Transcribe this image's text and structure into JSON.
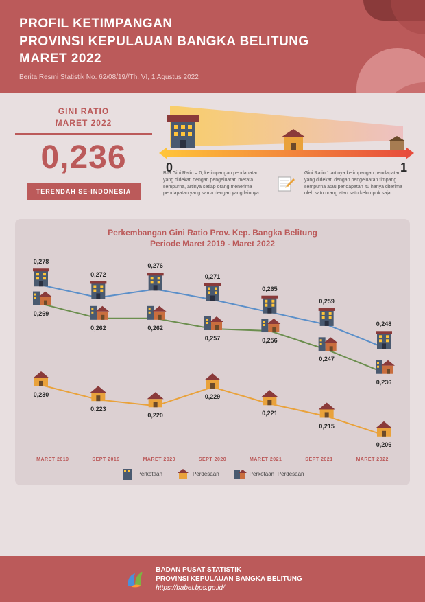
{
  "header": {
    "title_l1": "PROFIL KETIMPANGAN",
    "title_l2": "PROVINSI KEPULAUAN BANGKA BELITUNG",
    "title_l3": "MARET 2022",
    "subtitle": "Berita Resmi Statistik No. 62/08/19//Th. VI, 1 Agustus 2022",
    "bg_color": "#bb5a5a"
  },
  "gini": {
    "label_l1": "GINI RATIO",
    "label_l2": "MARET 2022",
    "value": "0,236",
    "badge": "TERENDAH SE-INDONESIA",
    "scale_min": "0",
    "scale_max": "1",
    "desc_left": "Bila Gini Ratio = 0, ketimpangan pendapatan yang didekati dengan pengeluaran merata sempurna, artinya setiap orang menerima pendapatan yang sama dengan yang lainnya",
    "desc_right": "Gini Ratio 1 artinya ketimpangan pendapatan yang didekati dengan pengeluaran timpang sempurna atau pendapatan itu hanya diterima oleh satu orang atau satu kelompok saja"
  },
  "chart": {
    "title_l1": "Perkembangan Gini Ratio Prov. Kep. Bangka Belitung",
    "title_l2": "Periode Maret 2019 - Maret 2022",
    "categories": [
      "MARET 2019",
      "SEPT 2019",
      "MARET 2020",
      "SEPT 2020",
      "MARET 2021",
      "SEPT 2021",
      "MARET 2022"
    ],
    "series": {
      "perkotaan": {
        "label": "Perkotaan",
        "color": "#5b8fc9",
        "values": [
          0.278,
          0.272,
          0.276,
          0.271,
          0.265,
          0.259,
          0.248
        ]
      },
      "perdesaan": {
        "label": "Perdesaan",
        "color": "#e9a23b",
        "values": [
          0.23,
          0.223,
          0.22,
          0.229,
          0.221,
          0.215,
          0.206
        ]
      },
      "gabungan": {
        "label": "Perkotaan+Perdesaan",
        "color": "#6b8e4e",
        "values": [
          0.269,
          0.262,
          0.262,
          0.257,
          0.256,
          0.247,
          0.236
        ]
      }
    },
    "ylim": [
      0.2,
      0.285
    ],
    "line_width": 2,
    "marker_w": 24,
    "marker_h": 26,
    "bg_color": "#dcd0d2",
    "title_color": "#bb5a5a",
    "axis_color": "#bb5a5a",
    "label_fontsize": 7
  },
  "footer": {
    "name_l1": "BADAN PUSAT STATISTIK",
    "name_l2": "PROVINSI KEPULAUAN BANGKA BELITUNG",
    "url": "https://babel.bps.go.id/"
  },
  "colors": {
    "page_bg": "#e8dfe0",
    "primary": "#bb5a5a",
    "accent_yellow": "#ffc43a",
    "accent_red": "#e74c3c"
  }
}
